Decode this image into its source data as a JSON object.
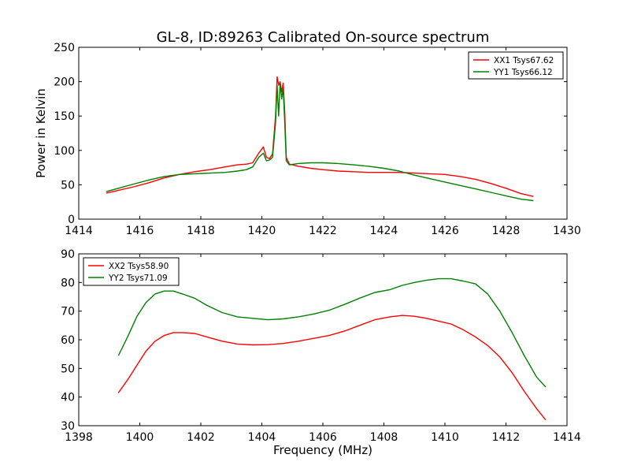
{
  "figure": {
    "title": "GL-8, ID:89263 Calibrated On-source spectrum"
  },
  "chart_data": [
    {
      "type": "line",
      "xlabel": "",
      "ylabel": "Power in Kelvin",
      "xlim": [
        1414,
        1430
      ],
      "ylim": [
        0,
        250
      ],
      "xticks": [
        1414,
        1416,
        1418,
        1420,
        1422,
        1424,
        1426,
        1428,
        1430
      ],
      "yticks": [
        0,
        50,
        100,
        150,
        200,
        250
      ],
      "grid": false,
      "legend_position": "top-right",
      "series": [
        {
          "name": "XX1 Tsys67.62",
          "color": "#ff0000",
          "x": [
            1414.9,
            1415.3,
            1415.8,
            1416.3,
            1416.8,
            1417.3,
            1417.8,
            1418.3,
            1418.8,
            1419.2,
            1419.5,
            1419.7,
            1419.9,
            1420.05,
            1420.15,
            1420.25,
            1420.35,
            1420.45,
            1420.5,
            1420.55,
            1420.6,
            1420.65,
            1420.7,
            1420.75,
            1420.8,
            1420.9,
            1421.2,
            1421.6,
            1422.0,
            1422.5,
            1423.0,
            1423.5,
            1424.0,
            1424.5,
            1425.0,
            1425.5,
            1426.0,
            1426.5,
            1427.0,
            1427.5,
            1428.0,
            1428.5,
            1428.9
          ],
          "y": [
            38,
            42,
            47,
            53,
            60,
            65,
            69,
            72,
            76,
            79,
            80,
            82,
            96,
            105,
            90,
            88,
            95,
            150,
            207,
            195,
            200,
            185,
            198,
            155,
            90,
            80,
            77,
            74,
            72,
            70,
            69,
            68,
            68,
            68,
            67,
            66,
            65,
            62,
            58,
            52,
            45,
            37,
            33
          ]
        },
        {
          "name": "YY1 Tsys66.12",
          "color": "#008000",
          "x": [
            1414.9,
            1415.3,
            1415.8,
            1416.3,
            1416.8,
            1417.3,
            1417.8,
            1418.3,
            1418.8,
            1419.2,
            1419.5,
            1419.7,
            1419.9,
            1420.05,
            1420.15,
            1420.25,
            1420.35,
            1420.45,
            1420.5,
            1420.55,
            1420.6,
            1420.65,
            1420.7,
            1420.75,
            1420.8,
            1420.9,
            1421.2,
            1421.6,
            1422.0,
            1422.5,
            1423.0,
            1423.5,
            1424.0,
            1424.5,
            1425.0,
            1425.5,
            1426.0,
            1426.5,
            1427.0,
            1427.5,
            1428.0,
            1428.5,
            1428.9
          ],
          "y": [
            40,
            45,
            51,
            57,
            62,
            65,
            66,
            67,
            68,
            70,
            72,
            76,
            90,
            96,
            85,
            86,
            90,
            140,
            195,
            150,
            198,
            175,
            190,
            140,
            85,
            79,
            81,
            82,
            82,
            81,
            79,
            77,
            74,
            70,
            64,
            59,
            54,
            49,
            44,
            39,
            34,
            29,
            27
          ]
        }
      ]
    },
    {
      "type": "line",
      "xlabel": "Frequency (MHz)",
      "ylabel": "",
      "xlim": [
        1398,
        1414
      ],
      "ylim": [
        30,
        90
      ],
      "xticks": [
        1398,
        1400,
        1402,
        1404,
        1406,
        1408,
        1410,
        1412,
        1414
      ],
      "yticks": [
        30,
        40,
        50,
        60,
        70,
        80,
        90
      ],
      "grid": false,
      "legend_position": "top-left",
      "series": [
        {
          "name": "XX2 Tsys58.90",
          "color": "#ff0000",
          "x": [
            1399.3,
            1399.6,
            1399.9,
            1400.2,
            1400.5,
            1400.8,
            1401.1,
            1401.4,
            1401.8,
            1402.2,
            1402.7,
            1403.2,
            1403.7,
            1404.2,
            1404.7,
            1405.2,
            1405.7,
            1406.2,
            1406.7,
            1407.2,
            1407.7,
            1408.2,
            1408.6,
            1409.0,
            1409.4,
            1409.8,
            1410.2,
            1410.6,
            1411.0,
            1411.4,
            1411.8,
            1412.2,
            1412.6,
            1413.0,
            1413.3
          ],
          "y": [
            41.5,
            46,
            51,
            56,
            59.5,
            61.5,
            62.5,
            62.5,
            62.2,
            61,
            59.5,
            58.5,
            58.2,
            58.3,
            58.7,
            59.5,
            60.5,
            61.5,
            63,
            65,
            67,
            68,
            68.5,
            68.2,
            67.5,
            66.5,
            65.5,
            63.5,
            61,
            58,
            54,
            48.5,
            42,
            36,
            32
          ]
        },
        {
          "name": "YY2 Tsys71.09",
          "color": "#008000",
          "x": [
            1399.3,
            1399.6,
            1399.9,
            1400.2,
            1400.5,
            1400.8,
            1401.1,
            1401.4,
            1401.8,
            1402.2,
            1402.7,
            1403.2,
            1403.7,
            1404.2,
            1404.7,
            1405.2,
            1405.7,
            1406.2,
            1406.7,
            1407.2,
            1407.7,
            1408.2,
            1408.6,
            1409.0,
            1409.4,
            1409.8,
            1410.2,
            1410.6,
            1411.0,
            1411.4,
            1411.8,
            1412.2,
            1412.6,
            1413.0,
            1413.3
          ],
          "y": [
            54.5,
            61,
            68,
            73,
            76,
            77,
            77,
            76,
            74.5,
            72,
            69.5,
            68,
            67.5,
            67,
            67.3,
            68,
            69,
            70.3,
            72.3,
            74.5,
            76.5,
            77.5,
            79,
            80,
            80.8,
            81.3,
            81.3,
            80.5,
            79.5,
            76,
            70,
            62.5,
            54.5,
            47,
            43.5
          ]
        }
      ]
    }
  ]
}
